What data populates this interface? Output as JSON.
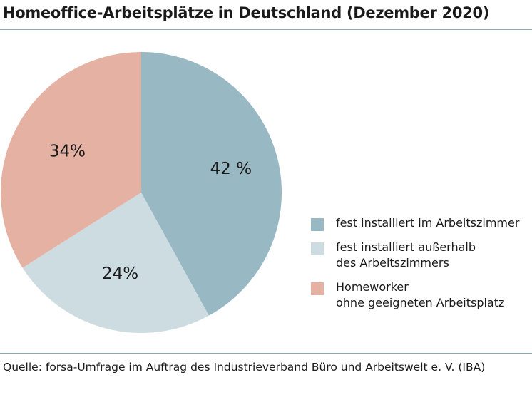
{
  "chart_data": {
    "type": "pie",
    "title": "Homeoffice-Arbeitsplätze in Deutschland (Dezember 2020)",
    "categories": [
      "fest installiert im Arbeitszimmer",
      "fest installiert außerhalb\ndes Arbeitszimmers",
      "Homeworker\nohne geeigneten Arbeitsplatz"
    ],
    "values": [
      42,
      24,
      34
    ],
    "value_labels": [
      "42 %",
      "24%",
      "34%"
    ],
    "colors": [
      "#98b8c3",
      "#cddce1",
      "#e5b1a3"
    ],
    "legend_position": "right"
  },
  "source": "Quelle: forsa-Umfrage im Auftrag des Industrieverband Büro und Arbeitswelt e. V. (IBA)"
}
